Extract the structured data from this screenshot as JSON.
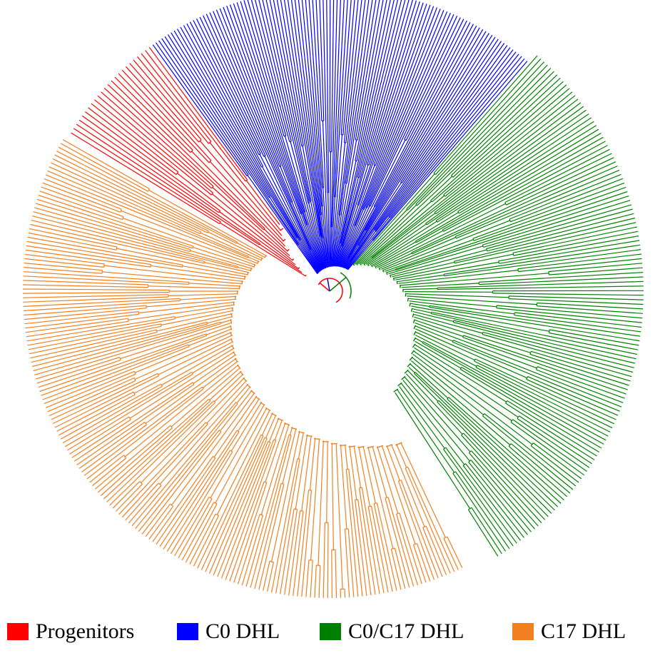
{
  "groups": [
    {
      "key": "progenitors",
      "label": "Progenitors",
      "color": "#ff0000",
      "leaves": 24
    },
    {
      "key": "c0",
      "label": "C0 DHL",
      "color": "#0000ff",
      "leaves": 112
    },
    {
      "key": "c0c17",
      "label": "C0/C17 DHL",
      "color": "#008000",
      "leaves": 128
    },
    {
      "key": "c17",
      "label": "C17 DHL",
      "color": "#f08020",
      "leaves": 180
    }
  ]
}
